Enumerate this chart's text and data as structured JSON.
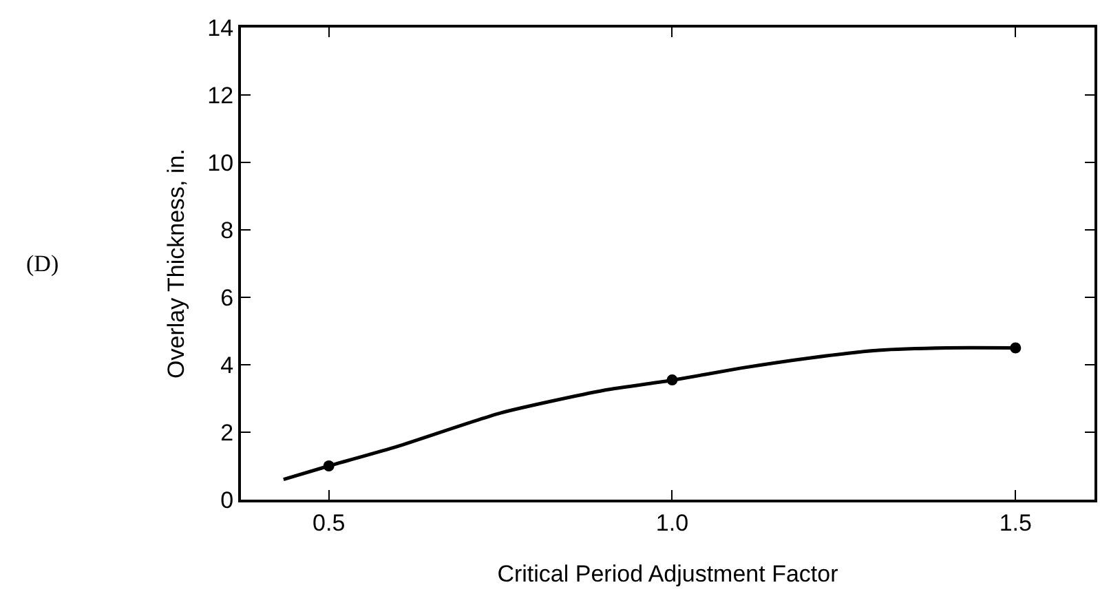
{
  "chart_data": {
    "type": "line",
    "xlabel": "Critical Period Adjustment Factor",
    "ylabel": "Overlay Thickness, in.",
    "annotations": [
      "(D)"
    ],
    "xlim": [
      0.372,
      1.615
    ],
    "xticks": [
      0.5,
      {
        "value": 1,
        "label": "1.0"
      },
      1.5
    ],
    "ylim": [
      0,
      14
    ],
    "yticks": [
      0,
      2,
      4,
      6,
      8,
      10,
      12,
      14
    ],
    "series": [
      {
        "color": "#000000",
        "marker": "none",
        "line_style": "solid",
        "x": [
          0.434,
          0.5,
          0.6,
          0.75,
          0.9,
          1.0,
          1.1,
          1.2,
          1.3,
          1.4,
          1.5
        ],
        "values": [
          0.6,
          1.0,
          1.58,
          2.57,
          3.24,
          3.54,
          3.9,
          4.2,
          4.43,
          4.5,
          4.5
        ]
      },
      {
        "type": "scatter",
        "color": "#000000",
        "marker": "circle",
        "x": [
          0.5,
          1.0,
          1.5
        ],
        "values": [
          1.0,
          3.55,
          4.5
        ]
      }
    ]
  }
}
